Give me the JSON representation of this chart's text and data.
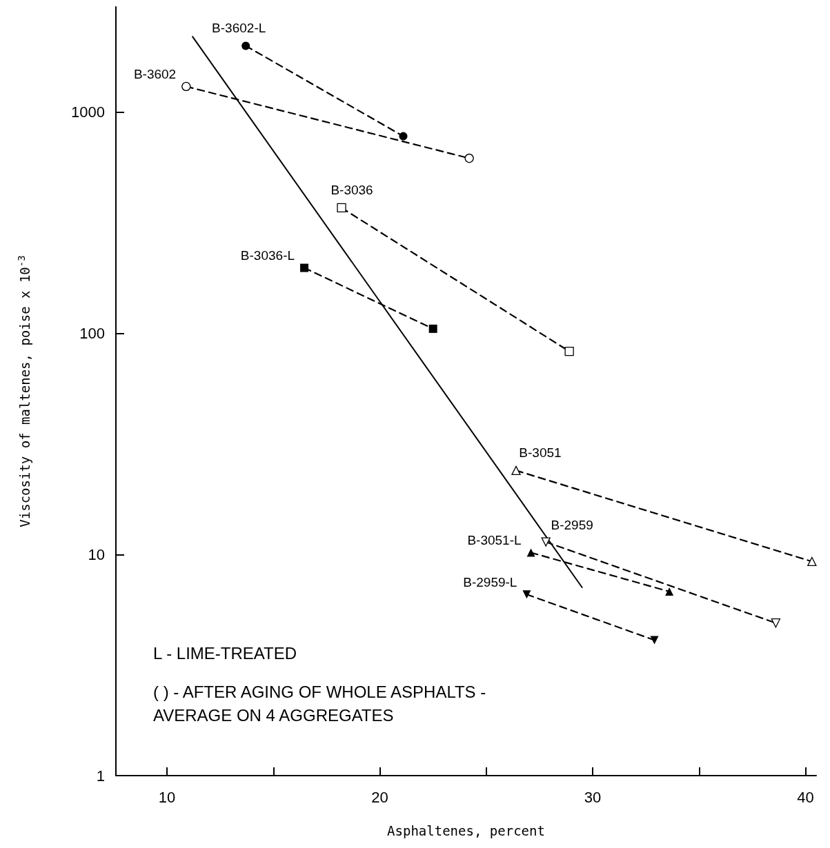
{
  "chart_data": {
    "type": "line",
    "xlabel": "Asphaltenes, percent",
    "ylabel": "Viscosity of maltenes, poise x 10$^{-3}$",
    "log": "y",
    "grid": false,
    "legend": false,
    "line_style": "dashed",
    "xlim": [
      7.6,
      40.5
    ],
    "ylim": [
      1,
      3000
    ],
    "xticks": [
      10,
      {
        "value": 15,
        "label": null
      },
      20,
      {
        "value": 25,
        "label": null
      },
      30,
      {
        "value": 35,
        "label": null
      },
      40
    ],
    "yticks": [
      1,
      10,
      100,
      1000
    ],
    "series": [
      {
        "name": "B-3602-L",
        "color": "#000000",
        "marker": "circle",
        "x": [
          13.7,
          21.1
        ],
        "values": [
          2000,
          780
        ]
      },
      {
        "name": "B-3602",
        "color": "#ffffff",
        "marker": "circle",
        "x": [
          10.9,
          24.2
        ],
        "values": [
          1310,
          620
        ]
      },
      {
        "name": "B-3036",
        "color": "#ffffff",
        "marker": "square",
        "x": [
          18.2,
          28.9
        ],
        "values": [
          370,
          83
        ]
      },
      {
        "name": "B-3036-L",
        "color": "#000000",
        "marker": "square",
        "x": [
          16.45,
          22.5
        ],
        "values": [
          198,
          105
        ]
      },
      {
        "name": "B-3051",
        "color": "#ffffff",
        "marker": "triangle",
        "x": [
          26.4,
          40.3
        ],
        "values": [
          24,
          9.3
        ]
      },
      {
        "name": "B-2959",
        "color": "#ffffff",
        "marker": "triangle-down",
        "x": [
          27.8,
          38.6
        ],
        "values": [
          11.4,
          4.9
        ]
      },
      {
        "name": "B-3051-L",
        "color": "#000000",
        "marker": "triangle",
        "x": [
          27.1,
          33.6
        ],
        "values": [
          10.2,
          6.8
        ]
      },
      {
        "name": "B-2959-L",
        "color": "#000000",
        "marker": "triangle-down",
        "x": [
          26.9,
          32.9
        ],
        "values": [
          6.6,
          4.1
        ]
      },
      {
        "type": "line",
        "color": "#000000",
        "marker": "none",
        "line_style": "solid",
        "x": [
          11.2,
          29.5
        ],
        "values": [
          2200,
          7.1
        ]
      }
    ],
    "annotations": [
      "L - LIME-TREATED",
      "( ) - AFTER AGING OF WHOLE ASPHALTS - AVERAGE ON 4 AGGREGATES"
    ]
  }
}
